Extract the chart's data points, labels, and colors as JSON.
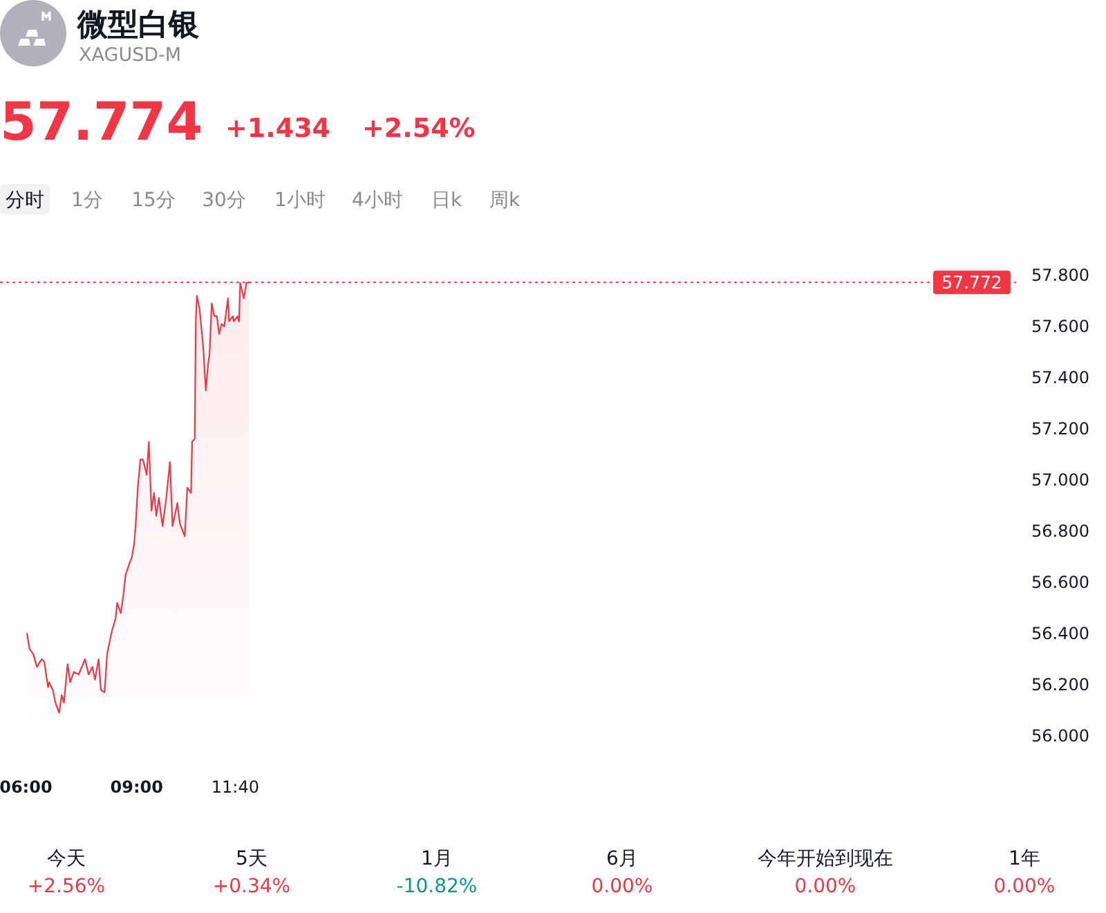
{
  "chart_data": {
    "type": "area",
    "title": "微型白银",
    "subtitle": "XAGUSD-M",
    "x": [
      6.03,
      6.1,
      6.2,
      6.3,
      6.43,
      6.5,
      6.6,
      6.63,
      6.73,
      6.8,
      6.9,
      6.97,
      7.03,
      7.13,
      7.2,
      7.3,
      7.43,
      7.6,
      7.7,
      7.8,
      7.87,
      7.97,
      8.03,
      8.13,
      8.2,
      8.27,
      8.33,
      8.43,
      8.47,
      8.57,
      8.63,
      8.7,
      8.77,
      8.87,
      8.93,
      8.97,
      9.03,
      9.1,
      9.17,
      9.27,
      9.33,
      9.4,
      9.47,
      9.53,
      9.6,
      9.7,
      9.8,
      9.9,
      9.97,
      10.1,
      10.17,
      10.3,
      10.37,
      10.47,
      10.5,
      10.57,
      10.6,
      10.63,
      10.7,
      10.8,
      10.87,
      10.93,
      10.97,
      11.03,
      11.1,
      11.17,
      11.23,
      11.3,
      11.37,
      11.47,
      11.5,
      11.6,
      11.63,
      11.73,
      11.77,
      11.8,
      11.9,
      11.97,
      12.03
    ],
    "series": [
      {
        "color": "#f23645",
        "values": [
          56.4,
          56.34,
          56.32,
          56.27,
          56.3,
          56.29,
          56.19,
          56.21,
          56.18,
          56.13,
          56.09,
          56.16,
          56.13,
          56.28,
          56.21,
          56.25,
          56.24,
          56.3,
          56.24,
          56.27,
          56.22,
          56.3,
          56.18,
          56.17,
          56.32,
          56.37,
          56.41,
          56.46,
          56.52,
          56.48,
          56.54,
          56.63,
          56.66,
          56.7,
          56.75,
          56.82,
          56.97,
          57.08,
          57.08,
          57.02,
          57.15,
          56.88,
          56.95,
          56.86,
          56.93,
          56.82,
          56.93,
          57.07,
          56.82,
          56.91,
          56.83,
          56.78,
          56.97,
          56.95,
          57.15,
          57.16,
          57.62,
          57.72,
          57.67,
          57.52,
          57.35,
          57.45,
          57.49,
          57.69,
          57.64,
          57.64,
          57.57,
          57.61,
          57.6,
          57.71,
          57.62,
          57.64,
          57.62,
          57.64,
          57.62,
          57.77,
          57.71,
          57.77,
          57.772
        ]
      }
    ],
    "xlim": [
      5.3,
      32.8
    ],
    "xticks": [
      {
        "value": 6,
        "label": "06:00"
      },
      {
        "value": 9,
        "label": "09:00"
      },
      {
        "value": 11.667,
        "label": "11:40"
      }
    ],
    "ylim": [
      56,
      57.8
    ],
    "yticks": [
      {
        "value": 56,
        "label": "56.000"
      },
      {
        "value": 56.2,
        "label": "56.200"
      },
      {
        "value": 56.4,
        "label": "56.400"
      },
      {
        "value": 56.6,
        "label": "56.600"
      },
      {
        "value": 56.8,
        "label": "56.800"
      },
      {
        "value": 57,
        "label": "57.000"
      },
      {
        "value": 57.2,
        "label": "57.200"
      },
      {
        "value": 57.4,
        "label": "57.400"
      },
      {
        "value": 57.6,
        "label": "57.600"
      },
      {
        "value": 57.8,
        "label": "57.800"
      }
    ],
    "ref_lines": [
      {
        "axis": "y",
        "value": 57.772,
        "label": "57.772",
        "color": "#f23645",
        "line_style": "dotted"
      }
    ],
    "annotations": [
      "57.774",
      "+1.434",
      "+2.54%",
      "分时",
      "1分",
      "15分",
      "30分",
      "1小时",
      "4小时",
      "日k",
      "周k",
      "今天",
      "5天",
      "1月",
      "6月",
      "今年开始到现在",
      "1年",
      "+2.56%",
      "+0.34%",
      "-10.82%",
      "0.00%",
      "0.00%",
      "0.00%"
    ]
  }
}
